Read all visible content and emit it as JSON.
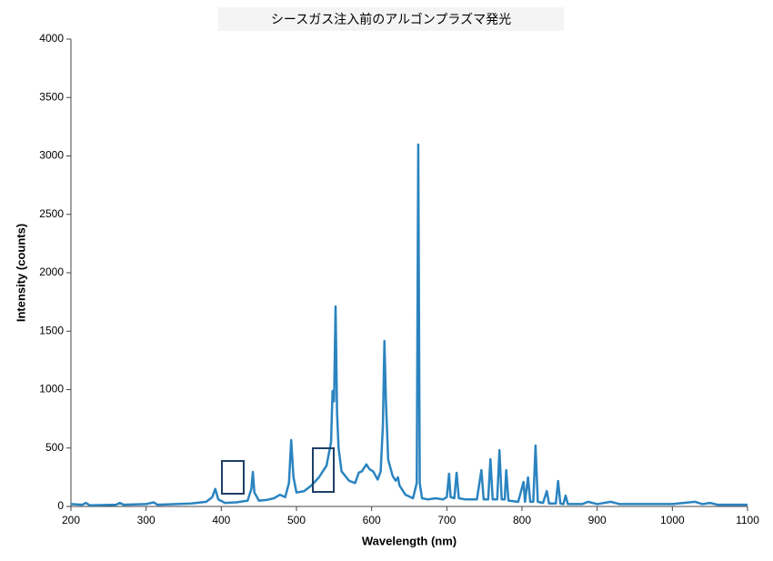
{
  "chart_data": {
    "type": "line",
    "title": "シースガス注入前のアルゴンプラズマ発光",
    "x_label": "Wavelength (nm)",
    "y_label": "Intensity (counts)",
    "xlim": [
      200,
      1100
    ],
    "xticks": [
      200,
      300,
      400,
      500,
      600,
      700,
      800,
      900,
      1000,
      1100
    ],
    "ylim": [
      0,
      4000
    ],
    "yticks": [
      0,
      500,
      1000,
      1500,
      2000,
      2500,
      3000,
      3500,
      4000
    ],
    "grid": false,
    "series": [
      {
        "color": "#2b84c0",
        "x": [
          200,
          215,
          220,
          225,
          260,
          265,
          270,
          300,
          310,
          315,
          340,
          360,
          380,
          388,
          392,
          396,
          405,
          420,
          435,
          440,
          442,
          444,
          450,
          460,
          470,
          478,
          485,
          490,
          493,
          496,
          500,
          510,
          520,
          530,
          540,
          546,
          548,
          550,
          552,
          554,
          556,
          560,
          570,
          578,
          583,
          587,
          590,
          593,
          597,
          602,
          608,
          612,
          615,
          617,
          619,
          622,
          628,
          632,
          635,
          637,
          645,
          655,
          660,
          662,
          664,
          667,
          675,
          685,
          695,
          700,
          703,
          705,
          710,
          713,
          716,
          725,
          740,
          746,
          749,
          755,
          758,
          761,
          767,
          770,
          773,
          777,
          779,
          782,
          795,
          802,
          804,
          808,
          811,
          815,
          818,
          821,
          828,
          833,
          836,
          845,
          848,
          851,
          855,
          858,
          861,
          880,
          888,
          900,
          918,
          930,
          960,
          1000,
          1030,
          1040,
          1050,
          1060,
          1100
        ],
        "values": [
          20,
          15,
          30,
          10,
          15,
          30,
          15,
          20,
          35,
          15,
          20,
          25,
          40,
          80,
          150,
          60,
          30,
          35,
          50,
          150,
          296,
          120,
          50,
          55,
          70,
          100,
          80,
          200,
          568,
          250,
          120,
          130,
          180,
          250,
          350,
          550,
          988,
          900,
          1712,
          800,
          500,
          300,
          220,
          200,
          290,
          300,
          330,
          360,
          320,
          300,
          230,
          300,
          700,
          1416,
          900,
          400,
          260,
          220,
          250,
          180,
          100,
          70,
          200,
          3097,
          200,
          70,
          60,
          70,
          60,
          80,
          280,
          80,
          70,
          288,
          70,
          60,
          60,
          311,
          60,
          60,
          405,
          60,
          60,
          482,
          60,
          60,
          311,
          50,
          40,
          210,
          40,
          249,
          40,
          40,
          521,
          40,
          30,
          132,
          25,
          25,
          218,
          25,
          20,
          93,
          20,
          20,
          40,
          20,
          40,
          20,
          20,
          20,
          40,
          20,
          30,
          15,
          15
        ]
      }
    ]
  }
}
